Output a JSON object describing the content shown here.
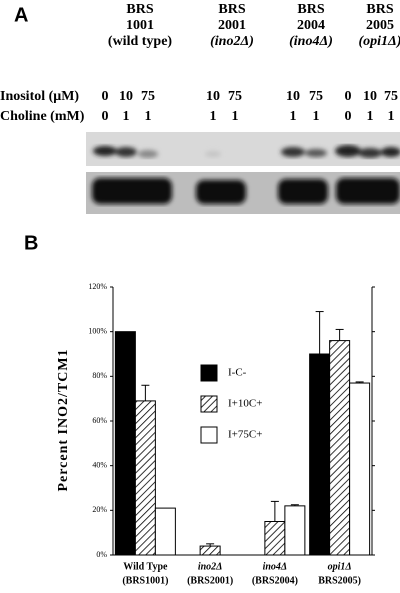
{
  "panel_a": {
    "label": "A",
    "strains": [
      {
        "line1": "BRS",
        "line2": "1001",
        "line3": "(wild type)"
      },
      {
        "line1": "BRS",
        "line2": "2001",
        "line3": "(ino2Δ)"
      },
      {
        "line1": "BRS",
        "line2": "2004",
        "line3": "(ino4Δ)"
      },
      {
        "line1": "BRS",
        "line2": "2005",
        "line3": "(opi1Δ)"
      }
    ],
    "inositol_label": "Inositol (μM)",
    "choline_label": "Choline (mM)",
    "inositol": [
      "0",
      "10",
      "75",
      "10",
      "75",
      "10",
      "75",
      "0",
      "10",
      "75"
    ],
    "choline": [
      "0",
      "1",
      "1",
      "1",
      "1",
      "1",
      "1",
      "0",
      "1",
      "1"
    ]
  },
  "chart_data": {
    "type": "bar",
    "panel_label": "B",
    "y_label": "Percent INO2/TCM1",
    "categories": [
      [
        "Wild Type",
        "(BRS1001)"
      ],
      [
        "ino2Δ",
        "(BRS2001)"
      ],
      [
        "ino4Δ",
        "(BRS2004)"
      ],
      [
        "opi1Δ",
        "BRS2005)"
      ]
    ],
    "series": [
      {
        "name": "I-C-",
        "color": "#000000",
        "values": [
          100,
          null,
          null,
          90
        ],
        "errors": [
          null,
          null,
          null,
          19
        ]
      },
      {
        "name": "I+10C+",
        "color": "hatch",
        "values": [
          69,
          4,
          15,
          96
        ],
        "errors": [
          7,
          1,
          9,
          5
        ]
      },
      {
        "name": "I+75C+",
        "color": "#ffffff",
        "values": [
          21,
          null,
          22,
          77
        ],
        "errors": [
          null,
          null,
          0.5,
          0.5
        ]
      }
    ],
    "ylim": [
      0,
      120
    ],
    "yticks": [
      {
        "value": 0,
        "label": "0%"
      },
      {
        "value": 20,
        "label": "20%"
      },
      {
        "value": 40,
        "label": "40%"
      },
      {
        "value": 60,
        "label": "60%"
      },
      {
        "value": 80,
        "label": "80%"
      },
      {
        "value": 100,
        "label": "100%"
      },
      {
        "value": 120,
        "label": "120%"
      }
    ],
    "legend": "top"
  }
}
